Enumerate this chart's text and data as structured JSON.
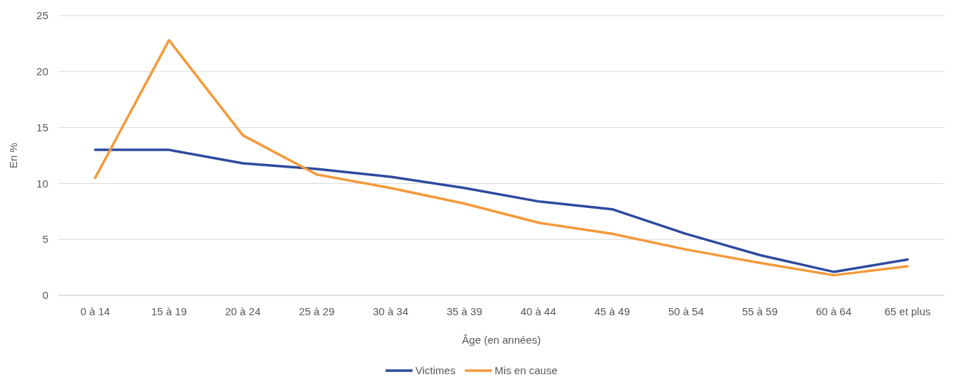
{
  "chart_data": {
    "type": "line",
    "xlabel": "Âge (en années)",
    "ylabel": "En %",
    "categories": [
      "0 à 14",
      "15 à 19",
      "20 à 24",
      "25 à 29",
      "30 à 34",
      "35 à 39",
      "40 à 44",
      "45 à 49",
      "50 à 54",
      "55 à 59",
      "60 à 64",
      "65 et plus"
    ],
    "series": [
      {
        "name": "Victimes",
        "color": "#2e4a9e",
        "values": [
          13.0,
          13.0,
          11.8,
          11.3,
          10.6,
          9.6,
          8.4,
          7.7,
          5.5,
          3.6,
          2.1,
          3.2
        ]
      },
      {
        "name": "Mis en cause",
        "color": "#f4993a",
        "values": [
          10.5,
          22.8,
          14.3,
          10.8,
          9.6,
          8.2,
          6.5,
          5.5,
          4.1,
          2.9,
          1.8,
          2.6
        ]
      }
    ],
    "ylim": [
      0,
      25
    ],
    "yticks": [
      0,
      5,
      10,
      15,
      20,
      25
    ],
    "grid": "y",
    "legend": "bottom",
    "marker": "none",
    "line_style": "solid"
  }
}
